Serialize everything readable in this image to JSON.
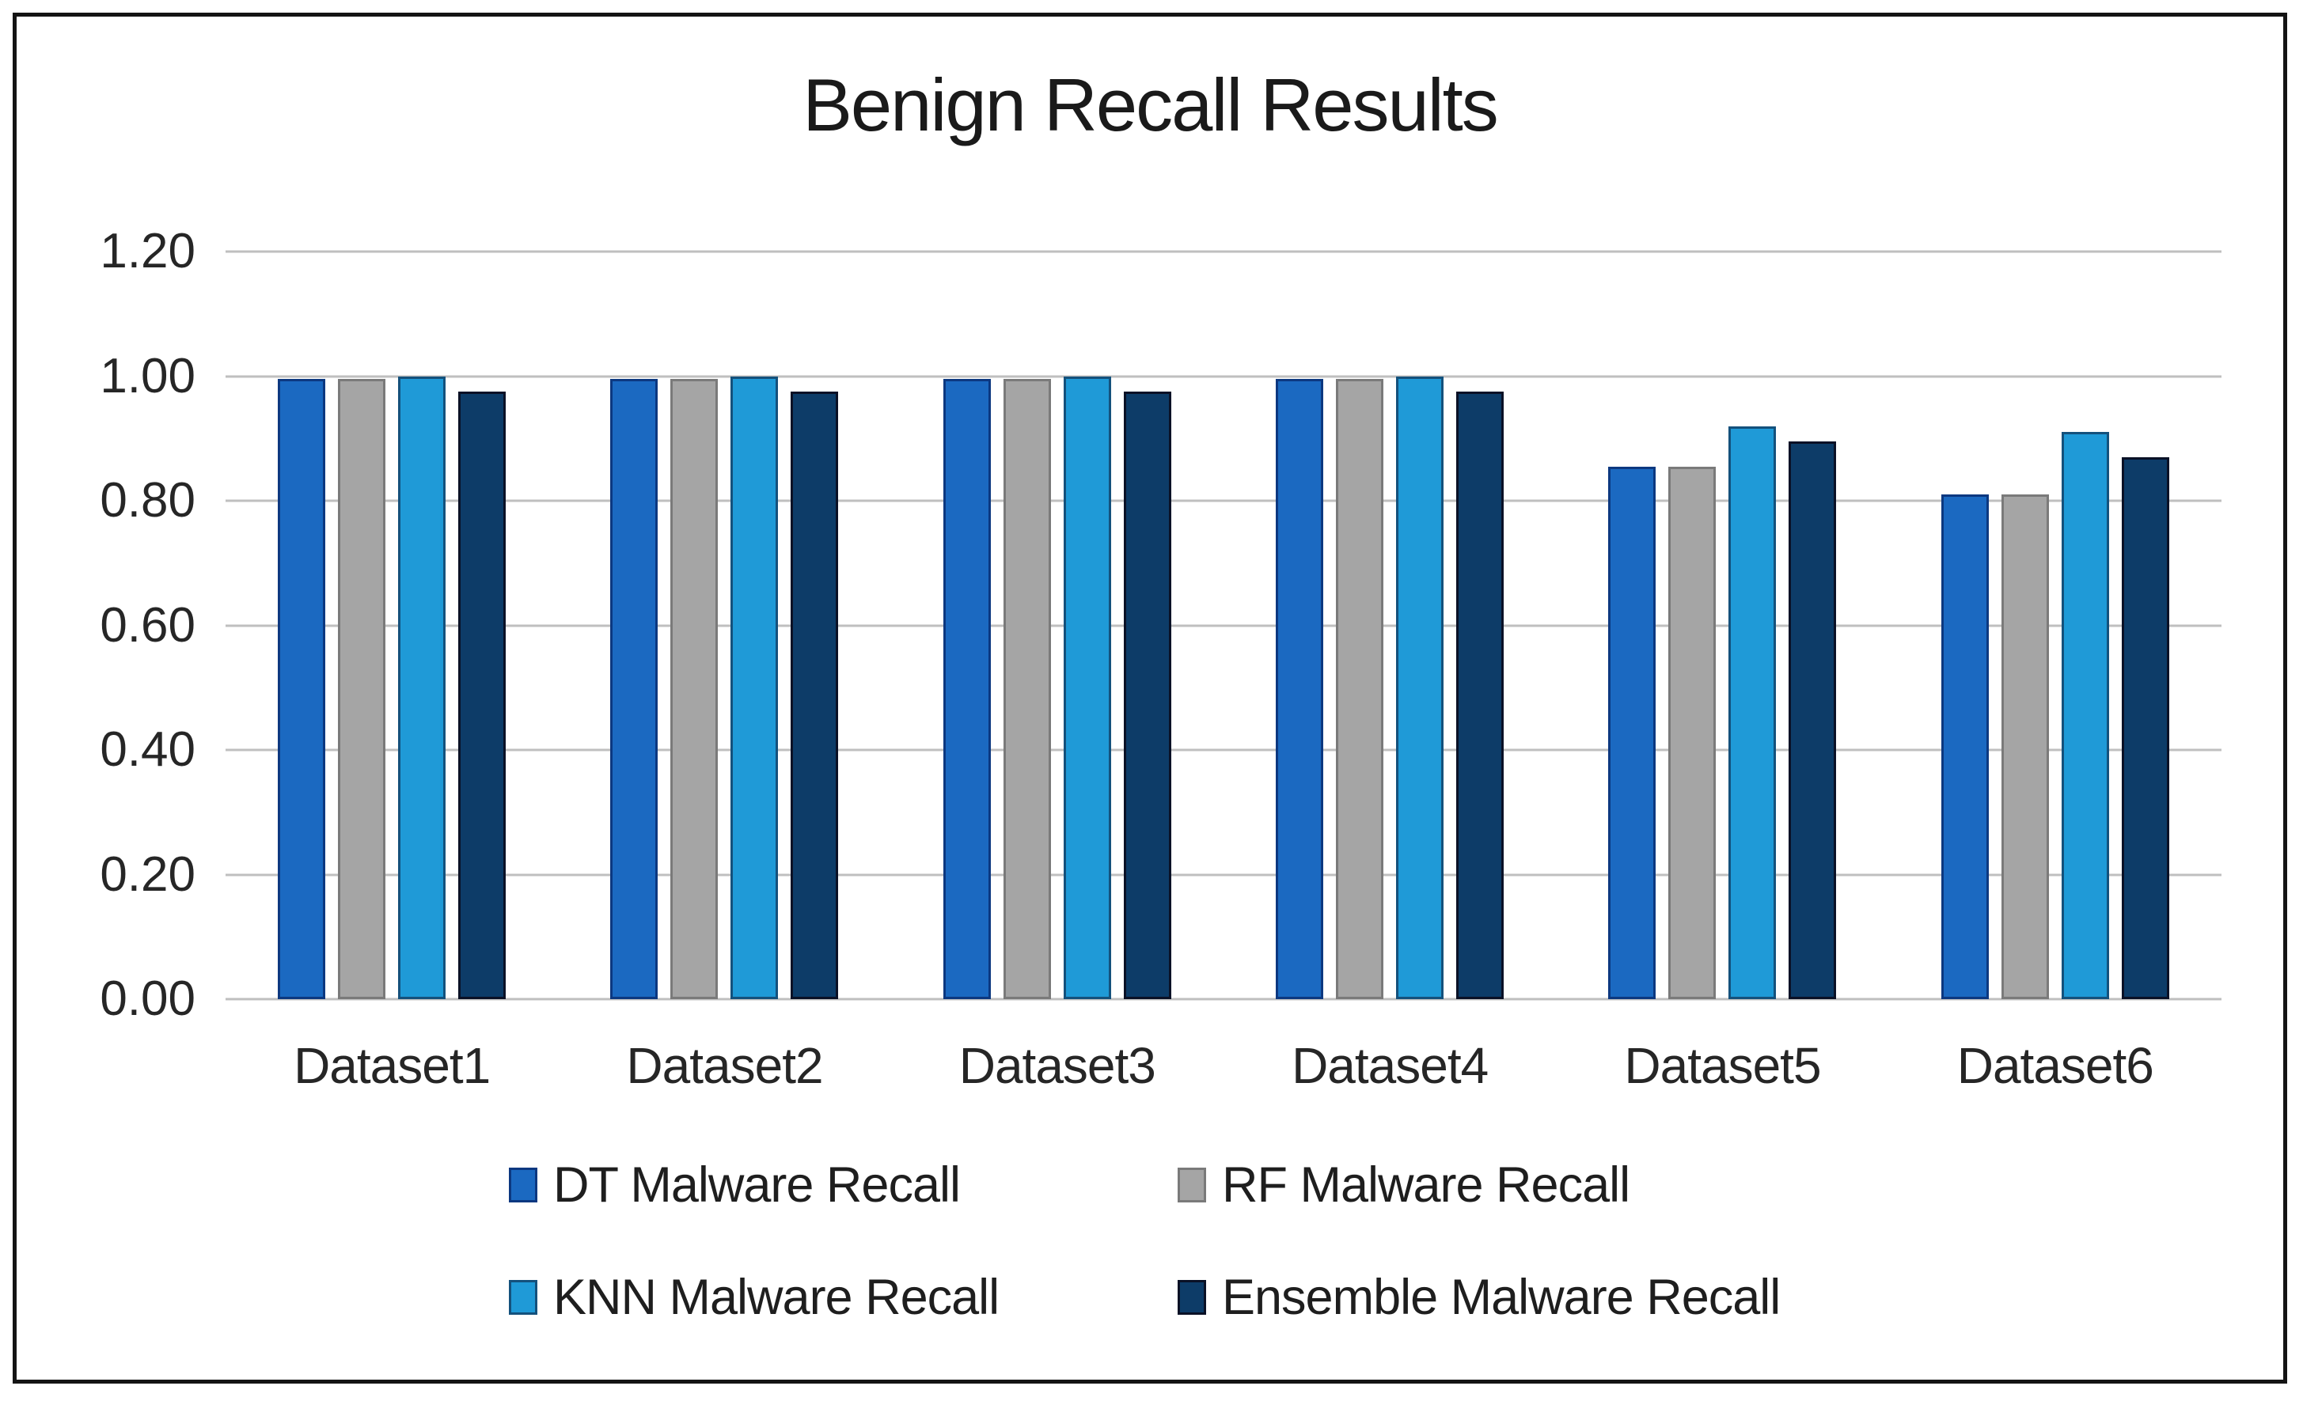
{
  "figure": {
    "background": "#FFFFFF",
    "frame_border_color": "#141414"
  },
  "chart_data": {
    "type": "bar",
    "title": "Benign Recall Results",
    "xlabel": "",
    "ylabel": "",
    "categories": [
      "Dataset1",
      "Dataset2",
      "Dataset3",
      "Dataset4",
      "Dataset5",
      "Dataset6"
    ],
    "series": [
      {
        "name": "DT Malware Recall",
        "color": "#1B69C1",
        "border_color": "#0C3880",
        "values": [
          0.995,
          0.995,
          0.995,
          0.995,
          0.855,
          0.81
        ]
      },
      {
        "name": "RF Malware Recall",
        "color": "#A5A5A5",
        "border_color": "#7A7A7A",
        "values": [
          0.995,
          0.995,
          0.995,
          0.995,
          0.855,
          0.81
        ]
      },
      {
        "name": "KNN Malware Recall",
        "color": "#1F9AD7",
        "border_color": "#14517C",
        "values": [
          1.0,
          1.0,
          1.0,
          1.0,
          0.92,
          0.91
        ]
      },
      {
        "name": "Ensemble Malware Recall",
        "color": "#0D3C68",
        "border_color": "#0A1126",
        "values": [
          0.975,
          0.975,
          0.975,
          0.975,
          0.895,
          0.87
        ]
      }
    ],
    "ylim": [
      0,
      1.2
    ],
    "yticks": [
      "1.20",
      "1.00",
      "0.80",
      "0.60",
      "0.40",
      "0.20",
      "0.00"
    ],
    "ytick_values": [
      1.2,
      1.0,
      0.8,
      0.6,
      0.4,
      0.2,
      0.0
    ],
    "grid": "horizontal",
    "gridline_color": "#BFBFBF",
    "legend_position": "bottom",
    "legend_rows": 2,
    "legend_columns": 2,
    "text_color": "#262626"
  }
}
